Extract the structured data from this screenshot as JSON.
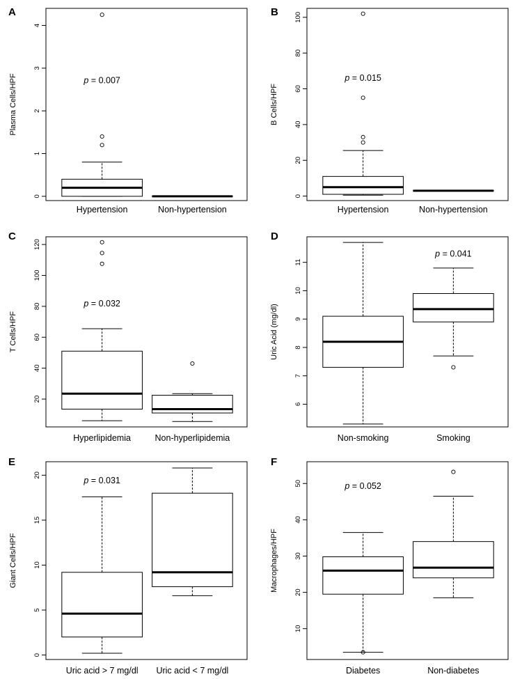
{
  "chart_data": [
    {
      "panel": "A",
      "type": "box",
      "ylabel": "Plasma Cells/HPF",
      "ylim": [
        -0.1,
        4.4
      ],
      "yticks": [
        0,
        1,
        2,
        3,
        4
      ],
      "annotation": {
        "p_symbol": "p",
        "text": " = 0.007",
        "y": 2.65,
        "x_group": 0
      },
      "categories": [
        "Hypertension",
        "Non-hypertension"
      ],
      "boxes": [
        {
          "min": 0,
          "q1": 0.0,
          "median": 0.2,
          "q3": 0.4,
          "max": 0.8,
          "outliers": [
            1.2,
            1.4,
            4.25
          ]
        },
        {
          "min": 0,
          "q1": 0,
          "median": 0,
          "q3": 0,
          "max": 0,
          "outliers": []
        }
      ]
    },
    {
      "panel": "B",
      "type": "box",
      "ylabel": "B Cells/HPF",
      "ylim": [
        -2.5,
        105
      ],
      "yticks": [
        0,
        20,
        40,
        60,
        80,
        100
      ],
      "annotation": {
        "p_symbol": "p",
        "text": " = 0.015",
        "y": 64.5,
        "x_group": 0
      },
      "categories": [
        "Hypertension",
        "Non-hypertension"
      ],
      "boxes": [
        {
          "min": 0.5,
          "q1": 1,
          "median": 5,
          "q3": 11,
          "max": 25.5,
          "outliers": [
            30,
            33,
            55,
            102
          ]
        },
        {
          "min": 3,
          "q1": 3,
          "median": 3,
          "q3": 3,
          "max": 3,
          "outliers": []
        }
      ]
    },
    {
      "panel": "C",
      "type": "box",
      "ylabel": "T Cells/HPF",
      "ylim": [
        2,
        125
      ],
      "yticks": [
        20,
        40,
        60,
        80,
        100,
        120
      ],
      "annotation": {
        "p_symbol": "p",
        "text": " = 0.032",
        "y": 80,
        "x_group": 0
      },
      "categories": [
        "Hyperlipidemia",
        "Non-hyperlipidemia"
      ],
      "boxes": [
        {
          "min": 6,
          "q1": 13.5,
          "median": 23.5,
          "q3": 51,
          "max": 65.5,
          "outliers": [
            107.5,
            114.5,
            121.5
          ]
        },
        {
          "min": 5.5,
          "q1": 11,
          "median": 13.5,
          "q3": 22.5,
          "max": 23.5,
          "outliers": [
            43
          ]
        }
      ]
    },
    {
      "panel": "D",
      "type": "box",
      "ylabel": "Uric Acid (mg/dl)",
      "ylim": [
        5.2,
        11.9
      ],
      "yticks": [
        6,
        7,
        8,
        9,
        10,
        11
      ],
      "annotation": {
        "p_symbol": "p",
        "text": " = 0.041",
        "y": 11.2,
        "x_group": 1
      },
      "categories": [
        "Non-smoking",
        "Smoking"
      ],
      "boxes": [
        {
          "min": 5.3,
          "q1": 7.3,
          "median": 8.2,
          "q3": 9.1,
          "max": 11.7,
          "outliers": []
        },
        {
          "min": 7.7,
          "q1": 8.9,
          "median": 9.35,
          "q3": 9.9,
          "max": 10.8,
          "outliers": [
            7.3
          ]
        }
      ]
    },
    {
      "panel": "E",
      "type": "box",
      "ylabel": "Giant Cells/HPF",
      "ylim": [
        -0.5,
        21.5
      ],
      "yticks": [
        0,
        5,
        10,
        15,
        20
      ],
      "annotation": {
        "p_symbol": "p",
        "text": " = 0.031",
        "y": 19.1,
        "x_group": 0
      },
      "categories": [
        "Uric acid > 7 mg/dl",
        "Uric acid < 7 mg/dl"
      ],
      "boxes": [
        {
          "min": 0.2,
          "q1": 2,
          "median": 4.6,
          "q3": 9.2,
          "max": 17.6,
          "outliers": []
        },
        {
          "min": 6.6,
          "q1": 7.6,
          "median": 9.2,
          "q3": 18,
          "max": 20.8,
          "outliers": []
        }
      ]
    },
    {
      "panel": "F",
      "type": "box",
      "ylabel": "Macrophages/HPF",
      "ylim": [
        1.5,
        56
      ],
      "yticks": [
        10,
        20,
        30,
        40,
        50
      ],
      "annotation": {
        "p_symbol": "p",
        "text": " = 0.052",
        "y": 48.5,
        "x_group": 0
      },
      "categories": [
        "Diabetes",
        "Non-diabetes"
      ],
      "boxes": [
        {
          "min": 3.5,
          "q1": 19.5,
          "median": 26,
          "q3": 29.8,
          "max": 36.5,
          "outliers": [
            3.5
          ]
        },
        {
          "min": 18.5,
          "q1": 24,
          "median": 26.8,
          "q3": 34,
          "max": 46.5,
          "outliers": [
            53.2
          ]
        }
      ]
    }
  ]
}
